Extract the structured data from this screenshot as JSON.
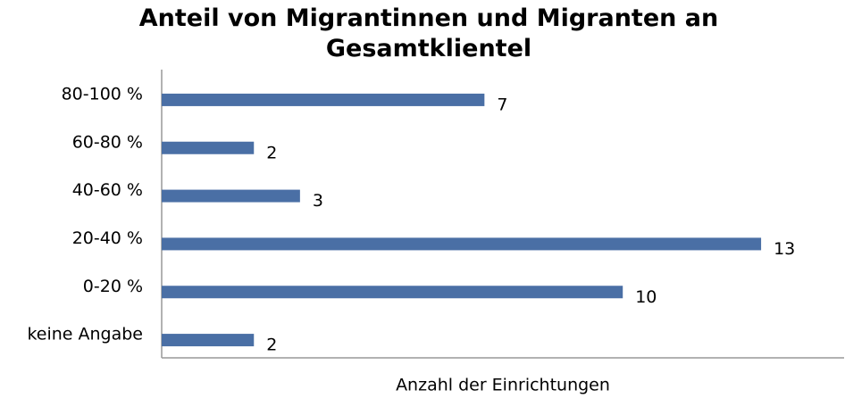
{
  "chart_data": {
    "type": "barh",
    "title": "Anteil von Migrantinnen und Migranten an Gesamtklientel",
    "xlabel": "Anzahl der Einrichtungen",
    "categories": [
      "80-100 %",
      "60-80 %",
      "40-60 %",
      "20-40 %",
      "0-20 %",
      "keine Angabe"
    ],
    "values": [
      7,
      2,
      3,
      13,
      10,
      2
    ],
    "color": "#4a6fa5",
    "xlim": [
      0,
      14.8
    ]
  }
}
